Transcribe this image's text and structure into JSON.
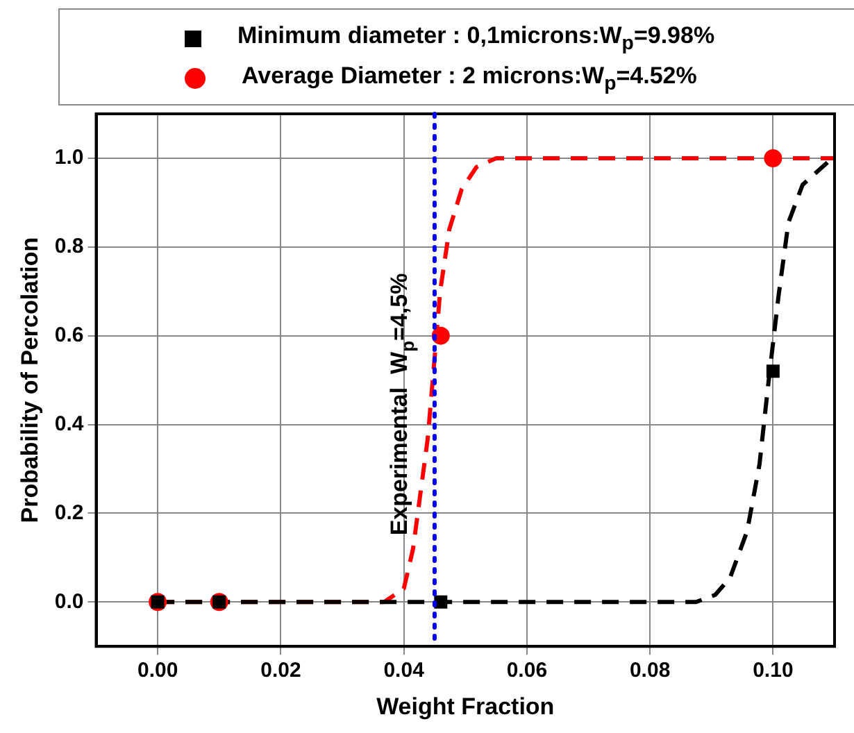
{
  "chart_data": {
    "type": "scatter",
    "xlabel": "Weight Fraction",
    "ylabel": "Probability of Percolation",
    "xlim": [
      -0.01,
      0.11
    ],
    "xticks": [
      {
        "value": 0,
        "label": "0.00"
      },
      {
        "value": 0.02,
        "label": "0.02"
      },
      {
        "value": 0.04,
        "label": "0.04"
      },
      {
        "value": 0.06,
        "label": "0.06"
      },
      {
        "value": 0.08,
        "label": "0.08"
      },
      {
        "value": 0.1,
        "label": "0.10"
      }
    ],
    "ylim": [
      -0.1,
      1.1
    ],
    "yticks": [
      {
        "value": 0,
        "label": "0.0"
      },
      {
        "value": 0.2,
        "label": "0.2"
      },
      {
        "value": 0.4,
        "label": "0.4"
      },
      {
        "value": 0.6,
        "label": "0.6"
      },
      {
        "value": 0.8,
        "label": "0.8"
      },
      {
        "value": 1,
        "label": "1.0"
      }
    ],
    "grid": true,
    "legend": "top",
    "series": [
      {
        "type": "line",
        "color": "#000000",
        "marker": "none",
        "line_style": "dashed",
        "x": [
          0,
          0.0875,
          0.0906,
          0.093,
          0.0958,
          0.0978,
          0.0993,
          0.1009,
          0.1025,
          0.1048,
          0.1096
        ],
        "values": [
          0,
          0,
          0.016,
          0.054,
          0.16,
          0.31,
          0.5,
          0.69,
          0.855,
          0.94,
          1
        ]
      },
      {
        "type": "line",
        "color": "#ff0000",
        "marker": "none",
        "line_style": "dashed",
        "x": [
          0,
          0.0368,
          0.04,
          0.0415,
          0.0439,
          0.045,
          0.0459,
          0.0474,
          0.0494,
          0.0518,
          0.055,
          0.11
        ],
        "values": [
          0,
          0,
          0.03,
          0.12,
          0.37,
          0.55,
          0.7,
          0.84,
          0.93,
          0.98,
          1,
          1
        ]
      },
      {
        "name": "Minimum diameter : 0,1microns:W$_{p}$=9.98%",
        "color": "#000000",
        "marker": "square",
        "x": [
          0,
          0.01,
          0.046,
          0.1
        ],
        "values": [
          0,
          0,
          0,
          0.52
        ]
      },
      {
        "name": "Average Diameter : 2 microns:W$_{p}$=4.52%",
        "color": "#ff0000",
        "marker": "circle",
        "x": [
          0,
          0.01,
          0.046,
          0.1
        ],
        "values": [
          0,
          0,
          0.6,
          1
        ]
      }
    ],
    "ref_lines": [
      {
        "axis": "x",
        "value": 0.045,
        "label": "Experimental  W$_{p}$=4,5%",
        "color": "#0000ff",
        "line_style": "dotted"
      }
    ]
  }
}
